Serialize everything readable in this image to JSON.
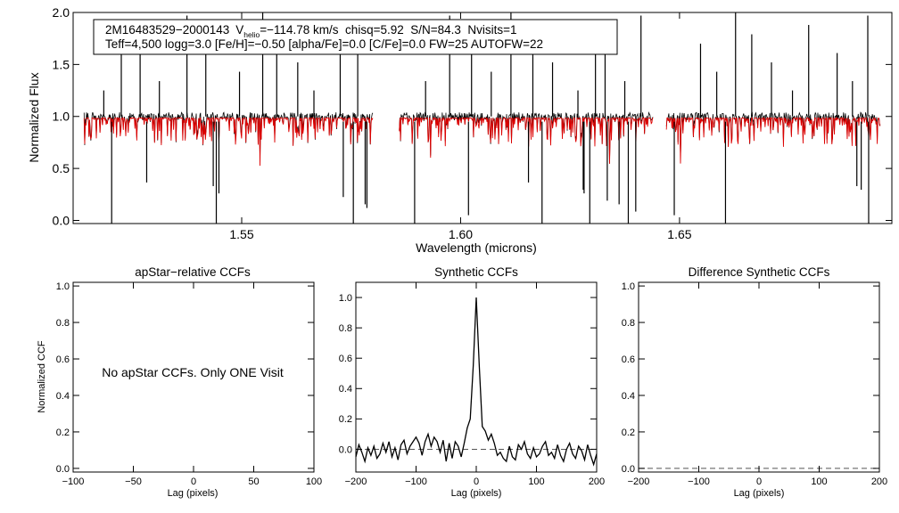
{
  "header": {
    "line1_star": "2M16483529−2000143",
    "line1_v": "V",
    "line1_vsub": "helio",
    "line1_rest": "=−114.78 km/s  chisq=5.92  S/N=84.3  Nvisits=1",
    "line2": "Teff=4,500 logg=3.0 [Fe/H]=−0.50 [alpha/Fe]=0.0 [C/Fe]=0.0 FW=25 AUTOFW=22"
  },
  "colors": {
    "observed": "#000000",
    "model": "#dd0000",
    "axis": "#000000",
    "zeroline": "#555555"
  },
  "chart_data": [
    {
      "id": "spectrum",
      "type": "line",
      "title": "",
      "xlabel": "Wavelength (microns)",
      "ylabel": "Normalized Flux",
      "xlim": [
        1.5115,
        1.6985
      ],
      "ylim": [
        -0.03,
        2.0
      ],
      "xticks": [
        1.55,
        1.6,
        1.65
      ],
      "xtick_labels": [
        "1.55",
        "1.60",
        "1.65"
      ],
      "yticks": [
        0.0,
        0.5,
        1.0,
        1.5,
        2.0
      ],
      "ytick_labels": [
        "0.0",
        "0.5",
        "1.0",
        "1.5",
        "2.0"
      ],
      "chip_ranges": [
        [
          1.514,
          1.58
        ],
        [
          1.586,
          1.644
        ],
        [
          1.647,
          1.696
        ]
      ],
      "observed_emission_spikes": [
        1.5185,
        1.5225,
        1.5268,
        1.5312,
        1.5375,
        1.5418,
        1.5495,
        1.5548,
        1.558,
        1.5628,
        1.5665,
        1.5725,
        1.5765,
        1.592,
        1.5975,
        1.6025,
        1.607,
        1.6115,
        1.6165,
        1.621,
        1.6268,
        1.6308,
        1.633,
        1.6375,
        1.6412,
        1.6548,
        1.6585,
        1.6628,
        1.6665,
        1.671,
        1.6758,
        1.6795,
        1.686,
        1.6895,
        1.693
      ],
      "observed_absorption_dips": [
        1.5203,
        1.5283,
        1.5435,
        1.5442,
        1.5448,
        1.5732,
        1.5755,
        1.5782,
        1.5786,
        1.5895,
        1.6018,
        1.6155,
        1.6186,
        1.628,
        1.6282,
        1.6295,
        1.6335,
        1.6362,
        1.6383,
        1.64,
        1.6488,
        1.6605,
        1.6905,
        1.6915,
        1.6932
      ],
      "series": [
        {
          "name": "observed",
          "color": "#000000"
        },
        {
          "name": "model",
          "color": "#dd0000"
        }
      ]
    },
    {
      "id": "apstar-ccf",
      "type": "line",
      "title": "apStar−relative CCFs",
      "xlabel": "Lag (pixels)",
      "ylabel": "Normalized CCF",
      "xlim": [
        -100,
        100
      ],
      "ylim": [
        -0.02,
        1.02
      ],
      "xticks": [
        -100,
        -50,
        0,
        50,
        100
      ],
      "xtick_labels": [
        "−100",
        "−50",
        "0",
        "50",
        "100"
      ],
      "yticks": [
        0.0,
        0.2,
        0.4,
        0.6,
        0.8,
        1.0
      ],
      "ytick_labels": [
        "0.0",
        "0.2",
        "0.4",
        "0.6",
        "0.8",
        "1.0"
      ],
      "annotation": "No apStar CCFs.  Only ONE Visit",
      "series": []
    },
    {
      "id": "synthetic-ccf",
      "type": "line",
      "title": "Synthetic CCFs",
      "xlabel": "Lag (pixels)",
      "ylabel": "",
      "xlim": [
        -200,
        200
      ],
      "ylim": [
        -0.15,
        1.1
      ],
      "xticks": [
        -200,
        -100,
        0,
        100,
        200
      ],
      "xtick_labels": [
        "−200",
        "−100",
        "0",
        "100",
        "200"
      ],
      "yticks": [
        0.0,
        0.2,
        0.4,
        0.6,
        0.8,
        1.0
      ],
      "ytick_labels": [
        "0.0",
        "0.2",
        "0.4",
        "0.6",
        "0.8",
        "1.0"
      ],
      "zero_line": 0.0,
      "series": [
        {
          "name": "ccf",
          "x": [
            -200,
            -195,
            -190,
            -185,
            -180,
            -175,
            -170,
            -165,
            -160,
            -155,
            -150,
            -145,
            -140,
            -135,
            -130,
            -125,
            -120,
            -115,
            -110,
            -105,
            -100,
            -95,
            -90,
            -85,
            -80,
            -75,
            -70,
            -65,
            -60,
            -55,
            -50,
            -45,
            -40,
            -35,
            -30,
            -25,
            -20,
            -15,
            -10,
            -5,
            0,
            5,
            10,
            15,
            20,
            25,
            30,
            35,
            40,
            45,
            50,
            55,
            60,
            65,
            70,
            75,
            80,
            85,
            90,
            95,
            100,
            105,
            110,
            115,
            120,
            125,
            130,
            135,
            140,
            145,
            150,
            155,
            160,
            165,
            170,
            175,
            180,
            185,
            190,
            195,
            200
          ],
          "values": [
            -0.05,
            0.03,
            -0.02,
            -0.08,
            0.01,
            -0.04,
            0.02,
            -0.06,
            -0.03,
            0.04,
            -0.02,
            0.05,
            -0.05,
            0.01,
            -0.07,
            0.03,
            0.06,
            -0.03,
            0.02,
            0.05,
            0.08,
            0.04,
            -0.04,
            0.05,
            0.1,
            0.02,
            0.08,
            0.05,
            -0.02,
            0.06,
            -0.08,
            0.04,
            -0.06,
            0.05,
            0.02,
            -0.05,
            0.04,
            0.14,
            0.2,
            0.55,
            1.0,
            0.55,
            0.15,
            0.12,
            0.06,
            0.1,
            0.04,
            -0.04,
            -0.02,
            -0.06,
            -0.08,
            0.02,
            -0.05,
            -0.07,
            0.03,
            0.0,
            0.05,
            -0.03,
            -0.06,
            0.01,
            -0.05,
            -0.03,
            0.02,
            0.05,
            -0.04,
            -0.02,
            -0.06,
            0.03,
            -0.04,
            -0.08,
            0.0,
            0.04,
            -0.03,
            -0.06,
            0.02,
            -0.01,
            -0.07,
            0.03,
            -0.04,
            -0.1,
            -0.03
          ]
        }
      ]
    },
    {
      "id": "difference-ccf",
      "type": "line",
      "title": "Difference Synthetic CCFs",
      "xlabel": "Lag (pixels)",
      "ylabel": "",
      "xlim": [
        -200,
        200
      ],
      "ylim": [
        -0.02,
        1.02
      ],
      "xticks": [
        -200,
        -100,
        0,
        100,
        200
      ],
      "xtick_labels": [
        "−200",
        "−100",
        "0",
        "100",
        "200"
      ],
      "yticks": [
        0.0,
        0.2,
        0.4,
        0.6,
        0.8,
        1.0
      ],
      "ytick_labels": [
        "0.0",
        "0.2",
        "0.4",
        "0.6",
        "0.8",
        "1.0"
      ],
      "zero_line": 0.0,
      "series": []
    }
  ]
}
